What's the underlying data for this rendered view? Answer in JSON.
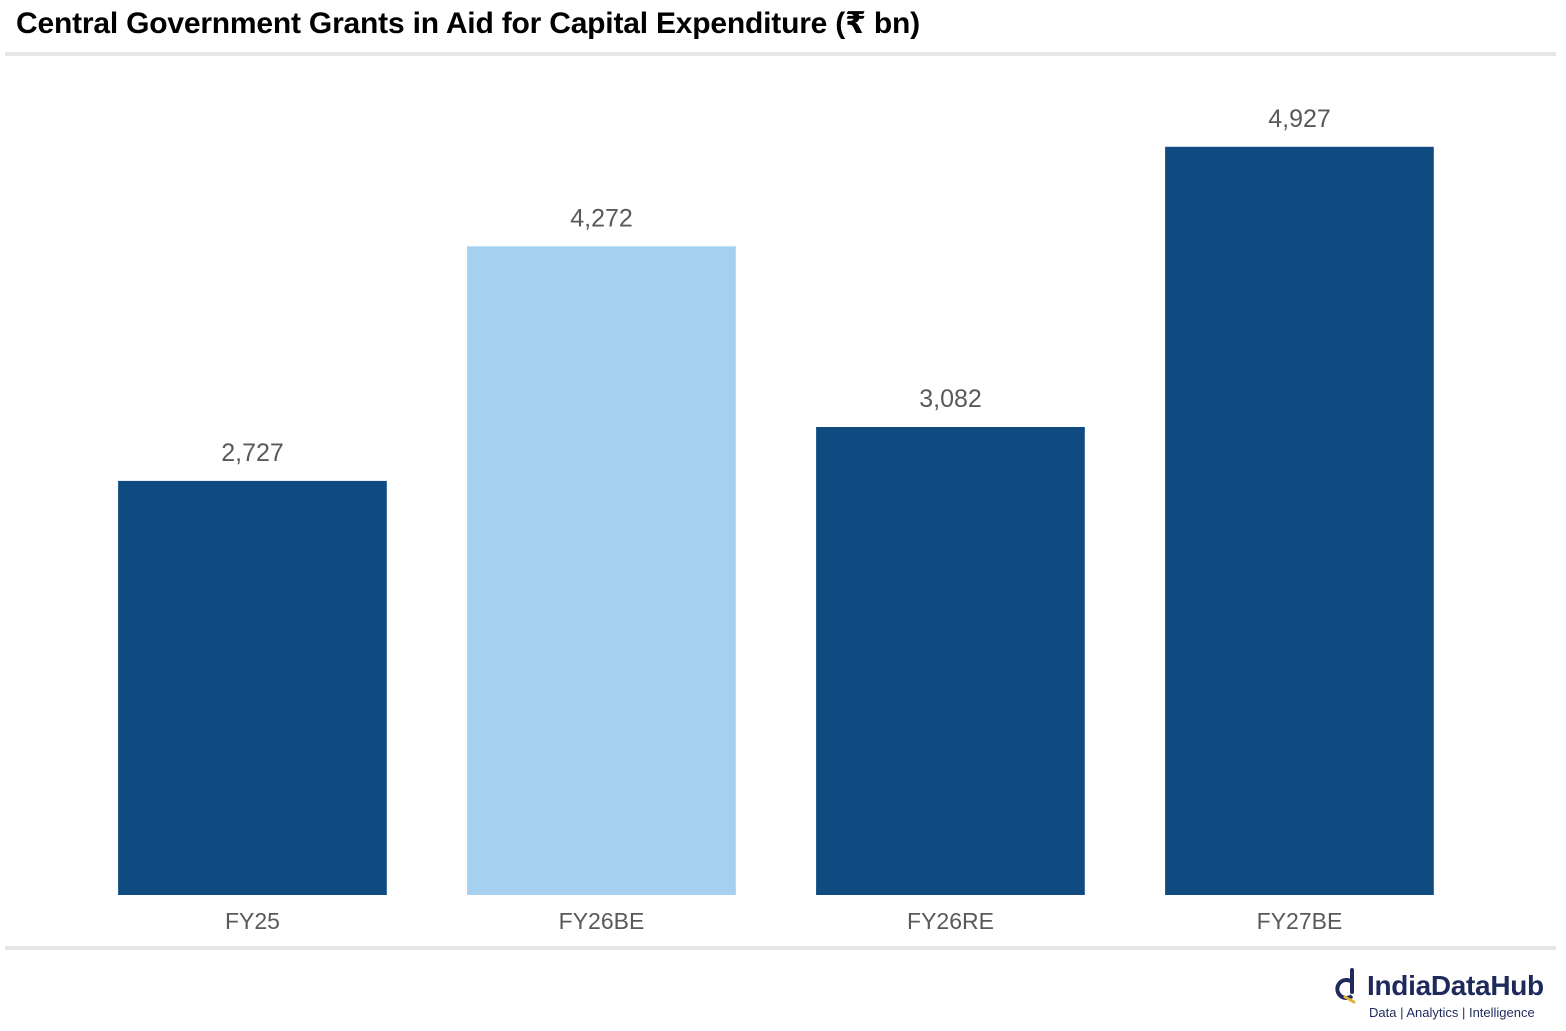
{
  "title": "Central Government Grants in Aid for Capital Expenditure (₹ bn)",
  "brand": {
    "name": "IndiaDataHub",
    "tagline": "Data | Analytics | Intelligence",
    "color": "#1f2a5c"
  },
  "colors": {
    "primary_bar": "#0f4b80",
    "highlight_bar": "#a6d0ef",
    "label_text": "#595959"
  },
  "chart_data": {
    "type": "bar",
    "title": "Central Government Grants in Aid for Capital Expenditure (₹ bn)",
    "categories": [
      "FY25",
      "FY26BE",
      "FY26RE",
      "FY27BE"
    ],
    "values": [
      2727,
      4272,
      3082,
      4927
    ],
    "value_labels": [
      "2,727",
      "4,272",
      "3,082",
      "4,927"
    ],
    "highlighted": [
      false,
      true,
      false,
      false
    ],
    "xlabel": "",
    "ylabel": "",
    "ylim": [
      0,
      5400
    ],
    "grid": false,
    "legend": "none"
  }
}
